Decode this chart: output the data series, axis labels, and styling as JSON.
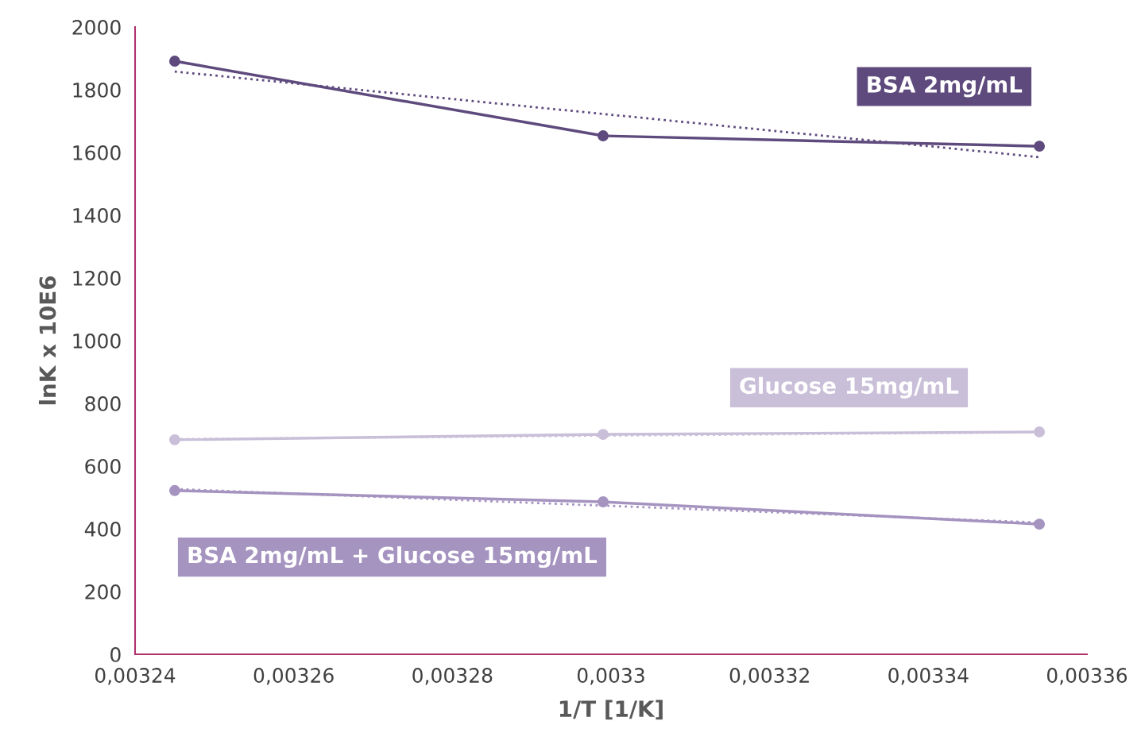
{
  "chart_data": {
    "type": "line",
    "xlabel": "1/T [1/K]",
    "ylabel": "lnK x 10E6",
    "xlim": [
      0.00324,
      0.00336
    ],
    "xticks": [
      {
        "value": 0.00324,
        "label": "0,00324"
      },
      {
        "value": 0.00326,
        "label": "0,00326"
      },
      {
        "value": 0.00328,
        "label": "0,00328"
      },
      {
        "value": 0.0033,
        "label": "0,0033"
      },
      {
        "value": 0.00332,
        "label": "0,00332"
      },
      {
        "value": 0.00334,
        "label": "0,00334"
      },
      {
        "value": 0.00336,
        "label": "0,00336"
      }
    ],
    "ylim": [
      0,
      2000
    ],
    "yticks": [
      0,
      200,
      400,
      600,
      800,
      1000,
      1200,
      1400,
      1600,
      1800,
      2000
    ],
    "grid": false,
    "legend": false,
    "marker": "circle",
    "line_style": "solid",
    "series": [
      {
        "name": "BSA 2mg/mL",
        "color": "#5e4a7d",
        "x": [
          0.003245,
          0.003299,
          0.003354
        ],
        "values": [
          1891,
          1653,
          1620
        ]
      },
      {
        "name": "Glucose 15mg/mL",
        "color": "#c9bfd8",
        "x": [
          0.003245,
          0.003299,
          0.003354
        ],
        "values": [
          684,
          701,
          709
        ]
      },
      {
        "name": "BSA 2mg/mL + Glucose 15mg/mL",
        "color": "#a593c0",
        "x": [
          0.003245,
          0.003299,
          0.003354
        ],
        "values": [
          522,
          486,
          415
        ]
      },
      {
        "type": "line",
        "color": "#5e4a7d",
        "marker": "none",
        "line_style": "dotted",
        "x": [
          0.003245,
          0.003354
        ],
        "values": [
          1858,
          1585
        ]
      },
      {
        "type": "line",
        "color": "#c9bfd8",
        "marker": "none",
        "line_style": "dotted",
        "x": [
          0.003245,
          0.003354
        ],
        "values": [
          686,
          708
        ]
      },
      {
        "type": "line",
        "color": "#a593c0",
        "marker": "none",
        "line_style": "dotted",
        "x": [
          0.003245,
          0.003354
        ],
        "values": [
          527,
          420
        ]
      }
    ]
  }
}
